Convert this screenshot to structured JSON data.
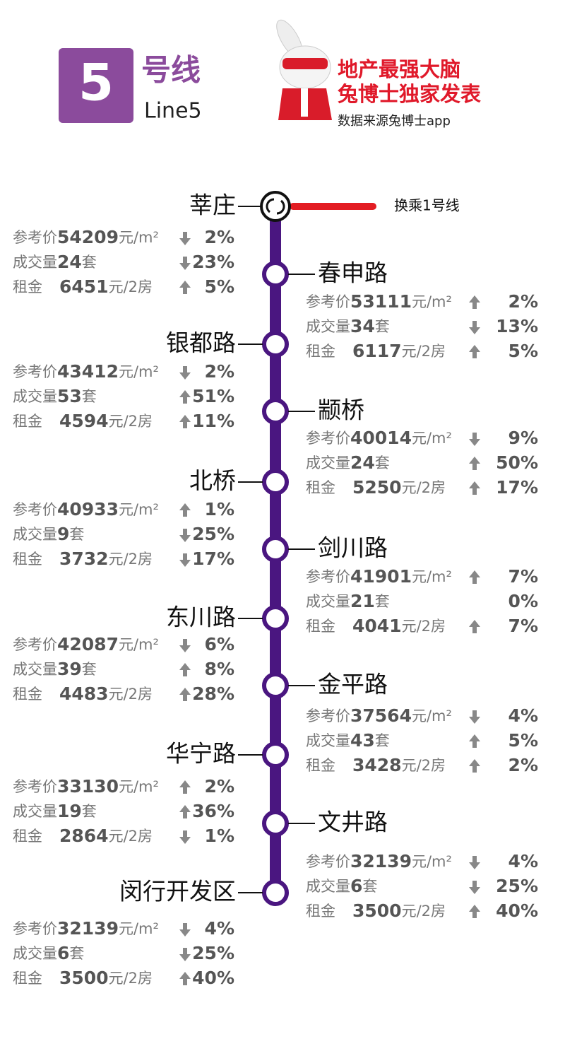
{
  "header": {
    "line_number": "5",
    "line_cn": "号线",
    "line_en": "Line5",
    "slogan1": "地产最强大脑",
    "slogan2": "兔博士独家发表",
    "source": "数据来源兔博士app"
  },
  "transfer": "换乘1号线",
  "labels": {
    "price": "参考价",
    "price_unit": "元/m²",
    "deals": "成交量",
    "deals_unit": "套",
    "rent": "租金",
    "rent_unit": "元/2房"
  },
  "stations": [
    {
      "name": "莘庄",
      "price": 54209,
      "price_change": "2%",
      "price_trend": "down",
      "deals": 24,
      "deals_change": "23%",
      "deals_trend": "down",
      "rent": 6451,
      "rent_change": "5%",
      "rent_trend": "up"
    },
    {
      "name": "春申路",
      "price": 53111,
      "price_change": "2%",
      "price_trend": "up",
      "deals": 34,
      "deals_change": "13%",
      "deals_trend": "down",
      "rent": 6117,
      "rent_change": "5%",
      "rent_trend": "up"
    },
    {
      "name": "银都路",
      "price": 43412,
      "price_change": "2%",
      "price_trend": "down",
      "deals": 53,
      "deals_change": "51%",
      "deals_trend": "up",
      "rent": 4594,
      "rent_change": "11%",
      "rent_trend": "up"
    },
    {
      "name": "颛桥",
      "price": 40014,
      "price_change": "9%",
      "price_trend": "down",
      "deals": 24,
      "deals_change": "50%",
      "deals_trend": "up",
      "rent": 5250,
      "rent_change": "17%",
      "rent_trend": "up"
    },
    {
      "name": "北桥",
      "price": 40933,
      "price_change": "1%",
      "price_trend": "up",
      "deals": 9,
      "deals_change": "25%",
      "deals_trend": "down",
      "rent": 3732,
      "rent_change": "17%",
      "rent_trend": "down"
    },
    {
      "name": "剑川路",
      "price": 41901,
      "price_change": "7%",
      "price_trend": "up",
      "deals": 21,
      "deals_change": "0%",
      "deals_trend": null,
      "rent": 4041,
      "rent_change": "7%",
      "rent_trend": "up"
    },
    {
      "name": "东川路",
      "price": 42087,
      "price_change": "6%",
      "price_trend": "down",
      "deals": 39,
      "deals_change": "8%",
      "deals_trend": "up",
      "rent": 4483,
      "rent_change": "28%",
      "rent_trend": "up"
    },
    {
      "name": "金平路",
      "price": 37564,
      "price_change": "4%",
      "price_trend": "down",
      "deals": 43,
      "deals_change": "5%",
      "deals_trend": "up",
      "rent": 3428,
      "rent_change": "2%",
      "rent_trend": "up"
    },
    {
      "name": "华宁路",
      "price": 33130,
      "price_change": "2%",
      "price_trend": "up",
      "deals": 19,
      "deals_change": "36%",
      "deals_trend": "up",
      "rent": 2864,
      "rent_change": "1%",
      "rent_trend": "down"
    },
    {
      "name": "文井路",
      "price": 32139,
      "price_change": "4%",
      "price_trend": "down",
      "deals": 6,
      "deals_change": "25%",
      "deals_trend": "down",
      "rent": 3500,
      "rent_change": "40%",
      "rent_trend": "up"
    },
    {
      "name": "闵行开发区",
      "price": 32139,
      "price_change": "4%",
      "price_trend": "down",
      "deals": 6,
      "deals_change": "25%",
      "deals_trend": "down",
      "rent": 3500,
      "rent_change": "40%",
      "rent_trend": "up"
    }
  ]
}
